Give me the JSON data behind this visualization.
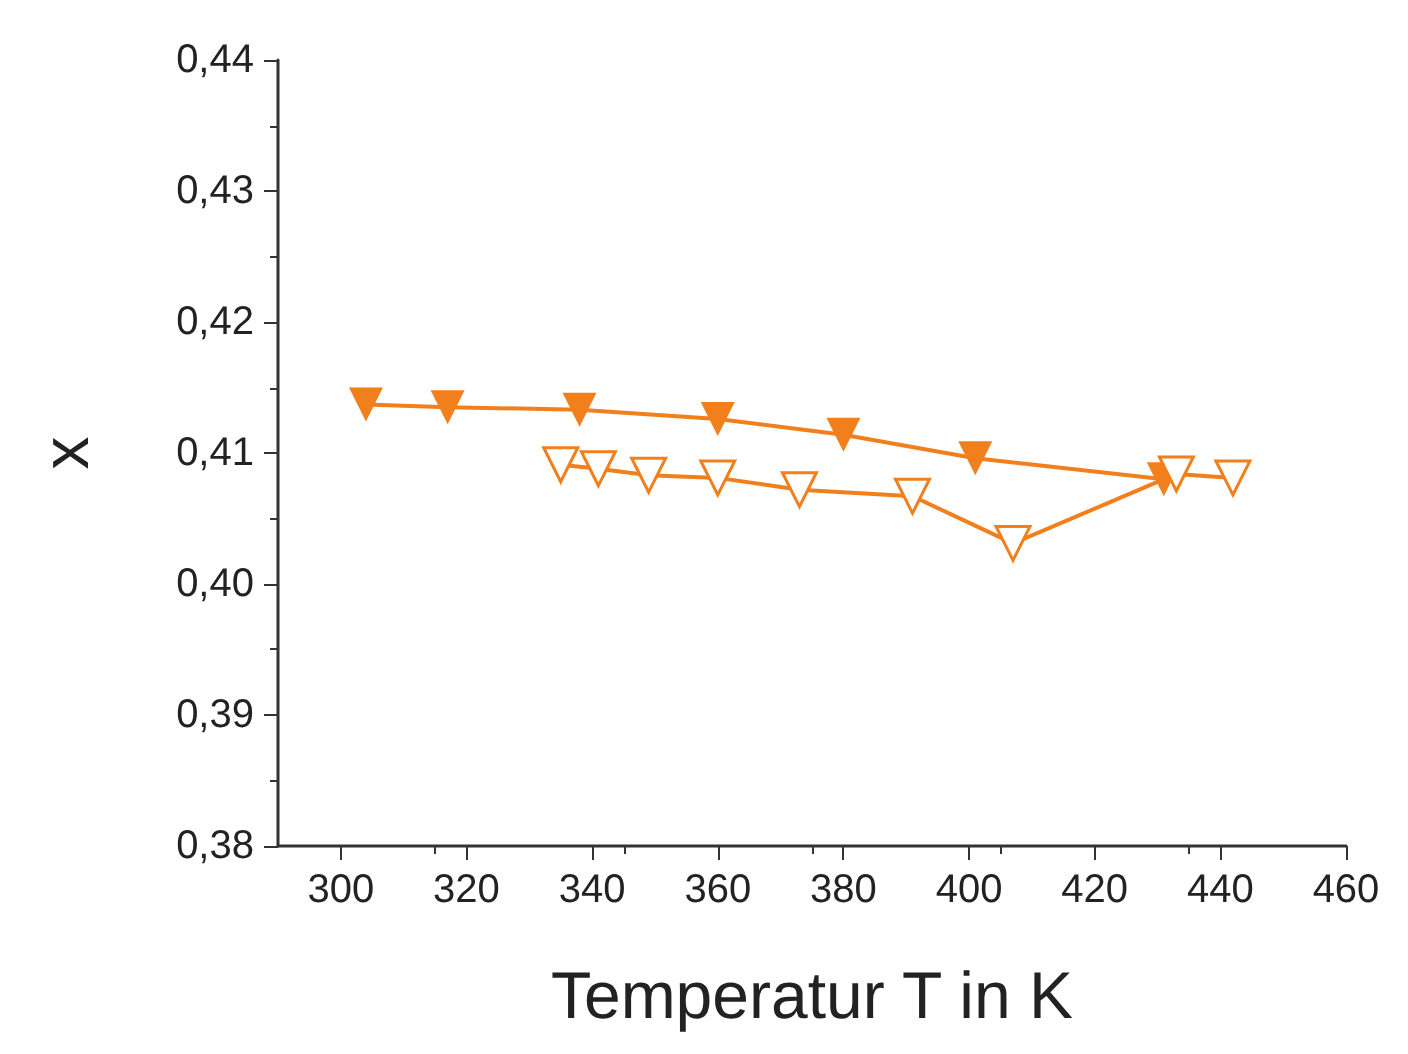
{
  "chart_data": {
    "type": "line",
    "xlabel": "Temperatur T in K",
    "ylabel": "x",
    "xlim": [
      290,
      460
    ],
    "xticks": [
      300,
      320,
      340,
      360,
      380,
      400,
      420,
      440,
      460
    ],
    "ylim": [
      0.38,
      0.44
    ],
    "yticks": [
      {
        "value": 0.38,
        "label": "0,38"
      },
      {
        "value": 0.39,
        "label": "0,39"
      },
      {
        "value": 0.4,
        "label": "0,40"
      },
      {
        "value": 0.41,
        "label": "0,41"
      },
      {
        "value": 0.42,
        "label": "0,42"
      },
      {
        "value": 0.43,
        "label": "0,43"
      },
      {
        "value": 0.44,
        "label": "0,44"
      }
    ],
    "grid": false,
    "marker": "triangle",
    "line_style": "solid",
    "series": [
      {
        "color": "#f07f1c",
        "x": [
          304,
          317,
          338,
          360,
          380,
          401,
          431
        ],
        "values": [
          0.4137,
          0.4135,
          0.4133,
          0.4126,
          0.4114,
          0.4096,
          0.408
        ]
      },
      {
        "color": "#f07f1c",
        "x": [
          335,
          341,
          349,
          360,
          373,
          391,
          407,
          433,
          442
        ],
        "values": [
          0.4091,
          0.4088,
          0.4083,
          0.4081,
          0.4072,
          0.4067,
          0.4031,
          0.4084,
          0.4081
        ]
      }
    ]
  }
}
